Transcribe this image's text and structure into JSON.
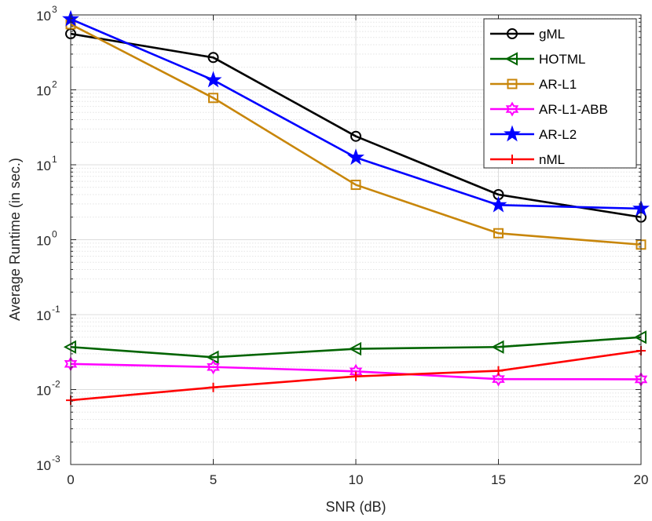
{
  "chart_data": {
    "type": "line",
    "title": "",
    "xlabel": "SNR (dB)",
    "ylabel": "Average Runtime (in sec.)",
    "x": [
      0,
      5,
      10,
      15,
      20
    ],
    "xlim": [
      0,
      20
    ],
    "ylim": [
      0.001,
      1000
    ],
    "yscale": "log",
    "xticks": [
      0,
      5,
      10,
      15,
      20
    ],
    "xtick_labels": [
      "0",
      "5",
      "10",
      "15",
      "20"
    ],
    "yticks": [
      {
        "value": 0.001,
        "base": "10",
        "exp": "-3"
      },
      {
        "value": 0.01,
        "base": "10",
        "exp": "-2"
      },
      {
        "value": 0.1,
        "base": "10",
        "exp": "-1"
      },
      {
        "value": 1,
        "base": "10",
        "exp": "0"
      },
      {
        "value": 10,
        "base": "10",
        "exp": "1"
      },
      {
        "value": 100,
        "base": "10",
        "exp": "2"
      },
      {
        "value": 1000,
        "base": "10",
        "exp": "3"
      }
    ],
    "grid": true,
    "minor_grid": true,
    "legend_position": "top-right",
    "series": [
      {
        "name": "gML",
        "color": "#000000",
        "marker": "circle",
        "values": [
          560,
          270,
          24,
          4.0,
          2.0
        ]
      },
      {
        "name": "HOTML",
        "color": "#006400",
        "marker": "triangle-left",
        "values": [
          0.037,
          0.027,
          0.035,
          0.037,
          0.05
        ]
      },
      {
        "name": "AR-L1",
        "color": "#C8860A",
        "marker": "square",
        "values": [
          750,
          78,
          5.4,
          1.22,
          0.86
        ]
      },
      {
        "name": "AR-L1-ABB",
        "color": "#FF00FF",
        "marker": "hexagram",
        "values": [
          0.022,
          0.02,
          0.0175,
          0.0138,
          0.0137
        ]
      },
      {
        "name": "AR-L2",
        "color": "#0000FF",
        "marker": "pentagram",
        "values": [
          880,
          135,
          12.5,
          2.9,
          2.6
        ]
      },
      {
        "name": "nML",
        "color": "#FF0000",
        "marker": "plus",
        "values": [
          0.0072,
          0.0107,
          0.015,
          0.0178,
          0.033
        ]
      }
    ]
  }
}
